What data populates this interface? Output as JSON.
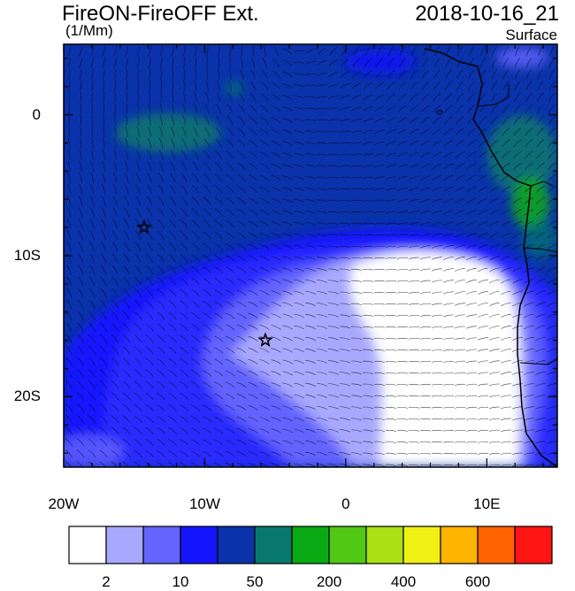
{
  "header": {
    "title": "FireON-FireOFF Ext.",
    "units": "(1/Mm)",
    "datetime": "2018-10-16_21",
    "level": "Surface"
  },
  "map": {
    "lon_range": [
      -20,
      15
    ],
    "lat_range": [
      -25,
      5
    ],
    "x_ticks": [
      {
        "lon": -20,
        "label": "20W"
      },
      {
        "lon": -10,
        "label": "10W"
      },
      {
        "lon": 0,
        "label": "0"
      },
      {
        "lon": 10,
        "label": "10E"
      }
    ],
    "y_ticks": [
      {
        "lat": 0,
        "label": "0"
      },
      {
        "lat": -10,
        "label": "10S"
      },
      {
        "lat": -20,
        "label": "20S"
      }
    ],
    "markers": [
      {
        "name": "star-marker-1",
        "lon": -14.3,
        "lat": -8.0
      },
      {
        "name": "star-marker-2",
        "lon": -5.7,
        "lat": -16.0
      }
    ],
    "vectors": "wind-streamlines"
  },
  "colorbar": {
    "colors": [
      "#ffffff",
      "#a8a8ff",
      "#6464ff",
      "#1414ff",
      "#0a32aa",
      "#08786e",
      "#0aaa14",
      "#50c814",
      "#aae014",
      "#f0f014",
      "#ffb400",
      "#ff6400",
      "#ff1414"
    ],
    "labels": [
      {
        "index": 1,
        "text": "2"
      },
      {
        "index": 3,
        "text": "10"
      },
      {
        "index": 5,
        "text": "50"
      },
      {
        "index": 7,
        "text": "200"
      },
      {
        "index": 9,
        "text": "400"
      },
      {
        "index": 11,
        "text": "600"
      }
    ]
  }
}
